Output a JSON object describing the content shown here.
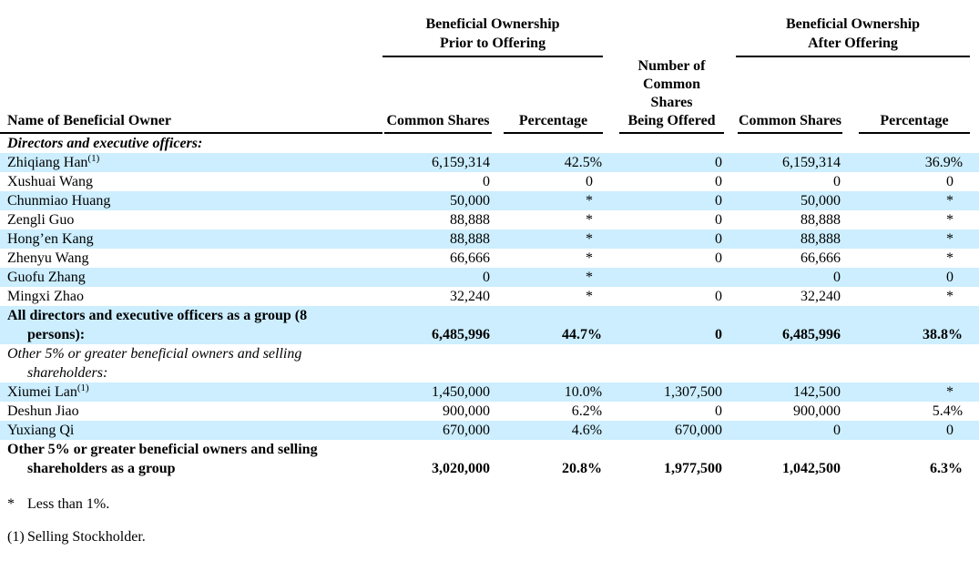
{
  "table": {
    "group_headers": {
      "prior": {
        "line1": "Beneficial Ownership",
        "line2": "Prior to Offering"
      },
      "offered": {
        "l1": "Number of",
        "l2": "Common",
        "l3": "Shares",
        "l4": "Being Offered"
      },
      "after": {
        "line1": "Beneficial Ownership",
        "line2": "After Offering"
      }
    },
    "columns": {
      "name": "Name of Beneficial Owner",
      "common_shares_prior": "Common Shares",
      "percentage_prior": "Percentage",
      "common_shares_after": "Common Shares",
      "percentage_after": "Percentage"
    },
    "rows": [
      {
        "style": "section",
        "shaded": false,
        "name1": "Directors and executive officers:",
        "cells": [
          "",
          "",
          "",
          "",
          ""
        ]
      },
      {
        "style": "normal",
        "shaded": true,
        "name1": "Zhiqiang Han",
        "sup": "(1)",
        "cells": [
          "6,159,314",
          "42.5%",
          "0",
          "6,159,314",
          "36.9%"
        ]
      },
      {
        "style": "normal",
        "shaded": false,
        "name1": "Xushuai Wang",
        "cells": [
          "0",
          "0",
          "0",
          "0",
          "0"
        ]
      },
      {
        "style": "normal",
        "shaded": true,
        "name1": "Chunmiao Huang",
        "cells": [
          "50,000",
          "*",
          "0",
          "50,000",
          "*"
        ]
      },
      {
        "style": "normal",
        "shaded": false,
        "name1": "Zengli Guo",
        "cells": [
          "88,888",
          "*",
          "0",
          "88,888",
          "*"
        ]
      },
      {
        "style": "normal",
        "shaded": true,
        "name1": "Hong’en Kang",
        "cells": [
          "88,888",
          "*",
          "0",
          "88,888",
          "*"
        ]
      },
      {
        "style": "normal",
        "shaded": false,
        "name1": "Zhenyu Wang",
        "cells": [
          "66,666",
          "*",
          "0",
          "66,666",
          "*"
        ]
      },
      {
        "style": "normal",
        "shaded": true,
        "name1": "Guofu Zhang",
        "cells": [
          "0",
          "*",
          "",
          "0",
          "0"
        ]
      },
      {
        "style": "normal",
        "shaded": false,
        "name1": "Mingxi Zhao",
        "cells": [
          "32,240",
          "*",
          "0",
          "32,240",
          "*"
        ]
      },
      {
        "style": "group",
        "shaded": true,
        "name1": "All directors and executive officers as a group (8",
        "name2": "persons):",
        "cells": [
          "6,485,996",
          "44.7%",
          "0",
          "6,485,996",
          "38.8%"
        ]
      },
      {
        "style": "subsection",
        "shaded": false,
        "name1": "Other 5% or greater beneficial owners and selling",
        "name2": "shareholders:",
        "cells": [
          "",
          "",
          "",
          "",
          ""
        ]
      },
      {
        "style": "normal",
        "shaded": true,
        "name1": "Xiumei Lan",
        "sup": "(1)",
        "cells": [
          "1,450,000",
          "10.0%",
          "1,307,500",
          "142,500",
          "*"
        ]
      },
      {
        "style": "normal",
        "shaded": false,
        "name1": "Deshun Jiao",
        "cells": [
          "900,000",
          "6.2%",
          "0",
          "900,000",
          "5.4%"
        ]
      },
      {
        "style": "normal",
        "shaded": true,
        "name1": "Yuxiang Qi",
        "cells": [
          "670,000",
          "4.6%",
          "670,000",
          "0",
          "0"
        ]
      },
      {
        "style": "group",
        "shaded": false,
        "name1": "Other 5% or greater beneficial owners and selling",
        "name2": "shareholders as a group",
        "cells": [
          "3,020,000",
          "20.8%",
          "1,977,500",
          "1,042,500",
          "6.3%"
        ]
      }
    ]
  },
  "footnotes": [
    {
      "marker": "*",
      "text": "Less than 1%."
    },
    {
      "marker": "(1)",
      "text": "Selling Stockholder."
    }
  ],
  "colors": {
    "row_shade": "#cceeff",
    "text": "#000000",
    "rule": "#000000"
  }
}
